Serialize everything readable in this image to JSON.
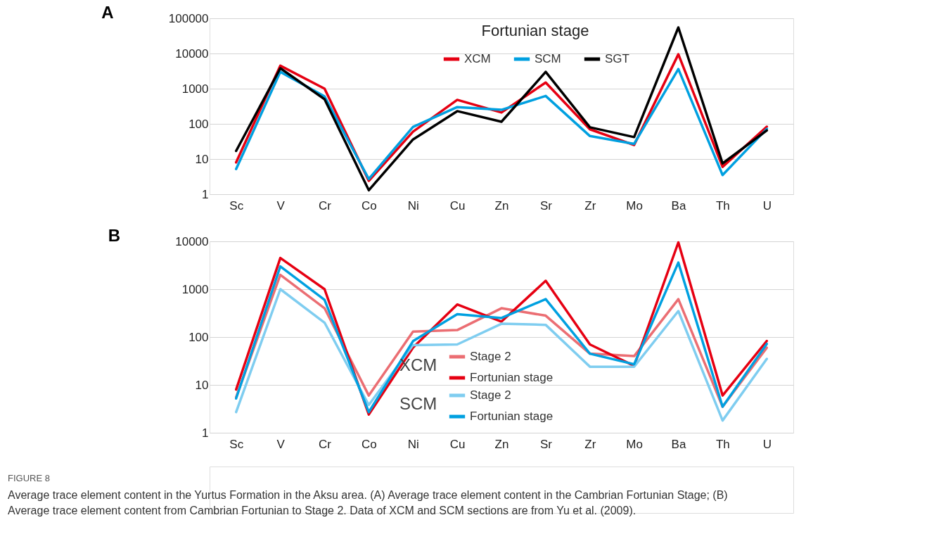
{
  "chart_data": [
    {
      "type": "line",
      "title": "A",
      "legend_title": "Fortunian stage",
      "legend": "top right",
      "log": "y",
      "grid": "y",
      "marker": "none",
      "line_style": "solid",
      "categories": [
        "Sc",
        "V",
        "Cr",
        "Co",
        "Ni",
        "Cu",
        "Zn",
        "Sr",
        "Zr",
        "Mo",
        "Ba",
        "Th",
        "U"
      ],
      "ylim": [
        1,
        100000
      ],
      "yticks": [
        1,
        10,
        100,
        1000,
        10000,
        100000
      ],
      "series": [
        {
          "name": "XCM",
          "color": "#e60012",
          "values": [
            8,
            4500,
            1000,
            2.4,
            60,
            480,
            210,
            1500,
            70,
            25,
            9500,
            6,
            83
          ]
        },
        {
          "name": "SCM",
          "color": "#00a0e0",
          "values": [
            5.2,
            3000,
            600,
            2.7,
            82,
            300,
            250,
            620,
            45,
            27,
            3600,
            3.5,
            72
          ]
        },
        {
          "name": "SGT",
          "color": "#000000",
          "values": [
            17,
            3800,
            500,
            1.3,
            36,
            230,
            115,
            3000,
            80,
            42,
            55000,
            7.5,
            65
          ]
        }
      ]
    },
    {
      "type": "line",
      "title": "B",
      "legend_title": [
        "XCM",
        "SCM"
      ],
      "legend": "bottom",
      "log": "y",
      "grid": "y",
      "marker": "none",
      "line_style": "solid",
      "categories": [
        "Sc",
        "V",
        "Cr",
        "Co",
        "Ni",
        "Cu",
        "Zn",
        "Sr",
        "Zr",
        "Mo",
        "Ba",
        "Th",
        "U"
      ],
      "ylim": [
        1,
        10000
      ],
      "yticks": [
        1,
        10,
        100,
        1000,
        10000
      ],
      "series": [
        {
          "name": "Stage 2",
          "color": "#eb6e73",
          "values": [
            5.5,
            2000,
            400,
            6,
            130,
            140,
            400,
            280,
            45,
            40,
            620,
            3.5,
            60
          ]
        },
        {
          "name": "Fortunian stage",
          "color": "#e60012",
          "values": [
            8,
            4500,
            1000,
            2.4,
            60,
            480,
            210,
            1500,
            70,
            25,
            9500,
            6,
            83
          ]
        },
        {
          "name": "Stage 2",
          "color": "#7fcdf0",
          "values": [
            2.7,
            1000,
            200,
            3.8,
            68,
            70,
            190,
            180,
            24,
            24,
            350,
            1.8,
            35
          ]
        },
        {
          "name": "Fortunian stage",
          "color": "#00a0e0",
          "values": [
            5.2,
            3000,
            600,
            2.7,
            82,
            300,
            250,
            620,
            45,
            27,
            3600,
            3.5,
            72
          ]
        }
      ],
      "annotations": [
        "FIGURE 8",
        "Average trace element content in the Yurtus Formation in the Aksu area. (A) Average trace element content in the Cambrian Fortunian Stage; (B)",
        "Average trace element content from Cambrian Fortunian to Stage 2. Data of XCM and SCM sections are from Yu et al. (2009)."
      ]
    }
  ]
}
